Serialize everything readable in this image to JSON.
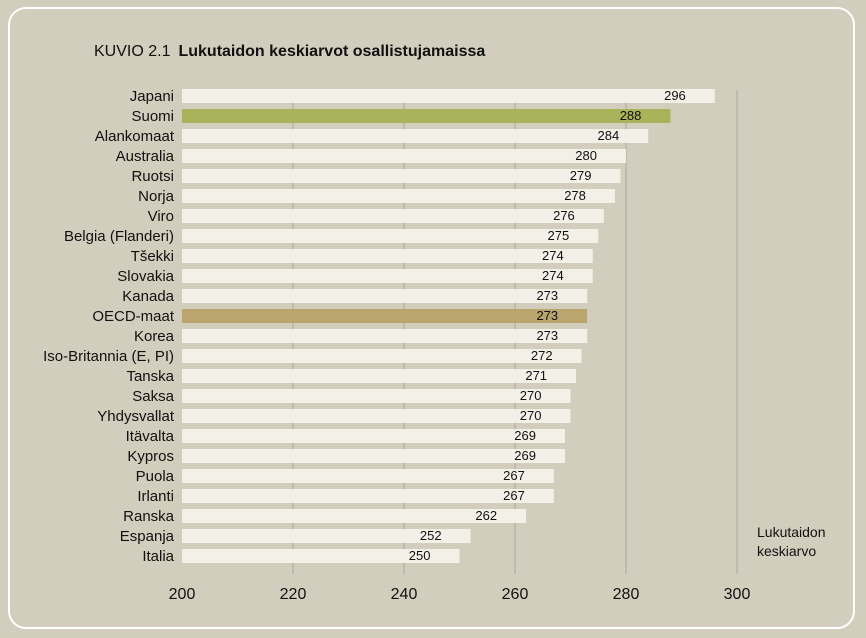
{
  "figure": {
    "number": "KUVIO 2.1",
    "title": "Lukutaidon keskiarvot osallistujamaissa",
    "axis_note_line1": "Lukutaidon",
    "axis_note_line2": "keskiarvo"
  },
  "colors": {
    "background": "#d3cdbd",
    "bar_default": "#f3f0e8",
    "bar_suomi": "#a8b35a",
    "bar_oecd": "#bba56f",
    "grid": "#aaa69a"
  },
  "chart_data": {
    "type": "bar",
    "orientation": "horizontal",
    "title": "Lukutaidon keskiarvot osallistujamaissa",
    "xlabel": "Lukutaidon keskiarvo",
    "xlim": [
      200,
      300
    ],
    "xticks": [
      200,
      220,
      240,
      260,
      280,
      300
    ],
    "grid": true,
    "categories": [
      "Japani",
      "Suomi",
      "Alankomaat",
      "Australia",
      "Ruotsi",
      "Norja",
      "Viro",
      "Belgia (Flanderi)",
      "Tšekki",
      "Slovakia",
      "Kanada",
      "OECD-maat",
      "Korea",
      "Iso-Britannia (E, PI)",
      "Tanska",
      "Saksa",
      "Yhdysvallat",
      "Itävalta",
      "Kypros",
      "Puola",
      "Irlanti",
      "Ranska",
      "Espanja",
      "Italia"
    ],
    "values": [
      296,
      288,
      284,
      280,
      279,
      278,
      276,
      275,
      274,
      274,
      273,
      273,
      273,
      272,
      271,
      270,
      270,
      269,
      269,
      267,
      267,
      262,
      252,
      250
    ],
    "highlight": {
      "Suomi": "#a8b35a",
      "OECD-maat": "#bba56f"
    }
  }
}
